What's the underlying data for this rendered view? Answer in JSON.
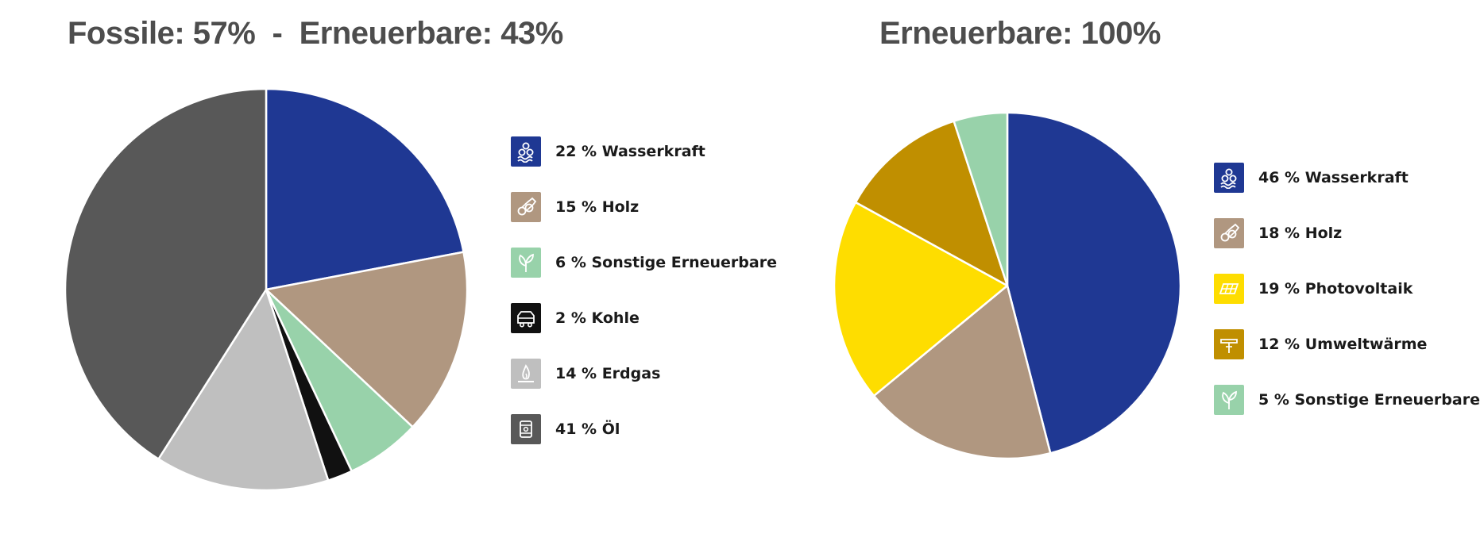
{
  "chart_data": [
    {
      "type": "pie",
      "title": "Fossile: 57%  -  Erneuerbare: 43%",
      "slices": [
        {
          "label": "Wasserkraft",
          "value": 22,
          "color": "#1f3893",
          "icon": "hydro-icon"
        },
        {
          "label": "Holz",
          "value": 15,
          "color": "#b09780",
          "icon": "wood-icon"
        },
        {
          "label": "Sonstige Erneuerbare",
          "value": 6,
          "color": "#98d2aa",
          "icon": "leaf-icon"
        },
        {
          "label": "Kohle",
          "value": 2,
          "color": "#111111",
          "icon": "coal-icon"
        },
        {
          "label": "Erdgas",
          "value": 14,
          "color": "#bfbfbf",
          "icon": "flame-icon"
        },
        {
          "label": "Öl",
          "value": 41,
          "color": "#585858",
          "icon": "oil-barrel-icon"
        }
      ],
      "legend": [
        {
          "label": "22 % Wasserkraft"
        },
        {
          "label": "15 % Holz"
        },
        {
          "label": "6 % Sonstige Erneuerbare"
        },
        {
          "label": "2 % Kohle"
        },
        {
          "label": "14 % Erdgas"
        },
        {
          "label": "41 % Öl"
        }
      ]
    },
    {
      "type": "pie",
      "title": "Erneuerbare: 100%",
      "slices": [
        {
          "label": "Wasserkraft",
          "value": 46,
          "color": "#1f3893",
          "icon": "hydro-icon"
        },
        {
          "label": "Holz",
          "value": 18,
          "color": "#b09780",
          "icon": "wood-icon"
        },
        {
          "label": "Photovoltaik",
          "value": 19,
          "color": "#fedd00",
          "icon": "solar-panel-icon"
        },
        {
          "label": "Umweltwärme",
          "value": 12,
          "color": "#c08f00",
          "icon": "heat-pump-icon"
        },
        {
          "label": "Sonstige Erneuerbare",
          "value": 5,
          "color": "#98d2aa",
          "icon": "leaf-icon"
        }
      ],
      "legend": [
        {
          "label": "46 % Wasserkraft"
        },
        {
          "label": "18 % Holz"
        },
        {
          "label": "19 % Photovoltaik"
        },
        {
          "label": "12 % Umweltwärme"
        },
        {
          "label": "5 % Sonstige Erneuerbare"
        }
      ]
    }
  ]
}
